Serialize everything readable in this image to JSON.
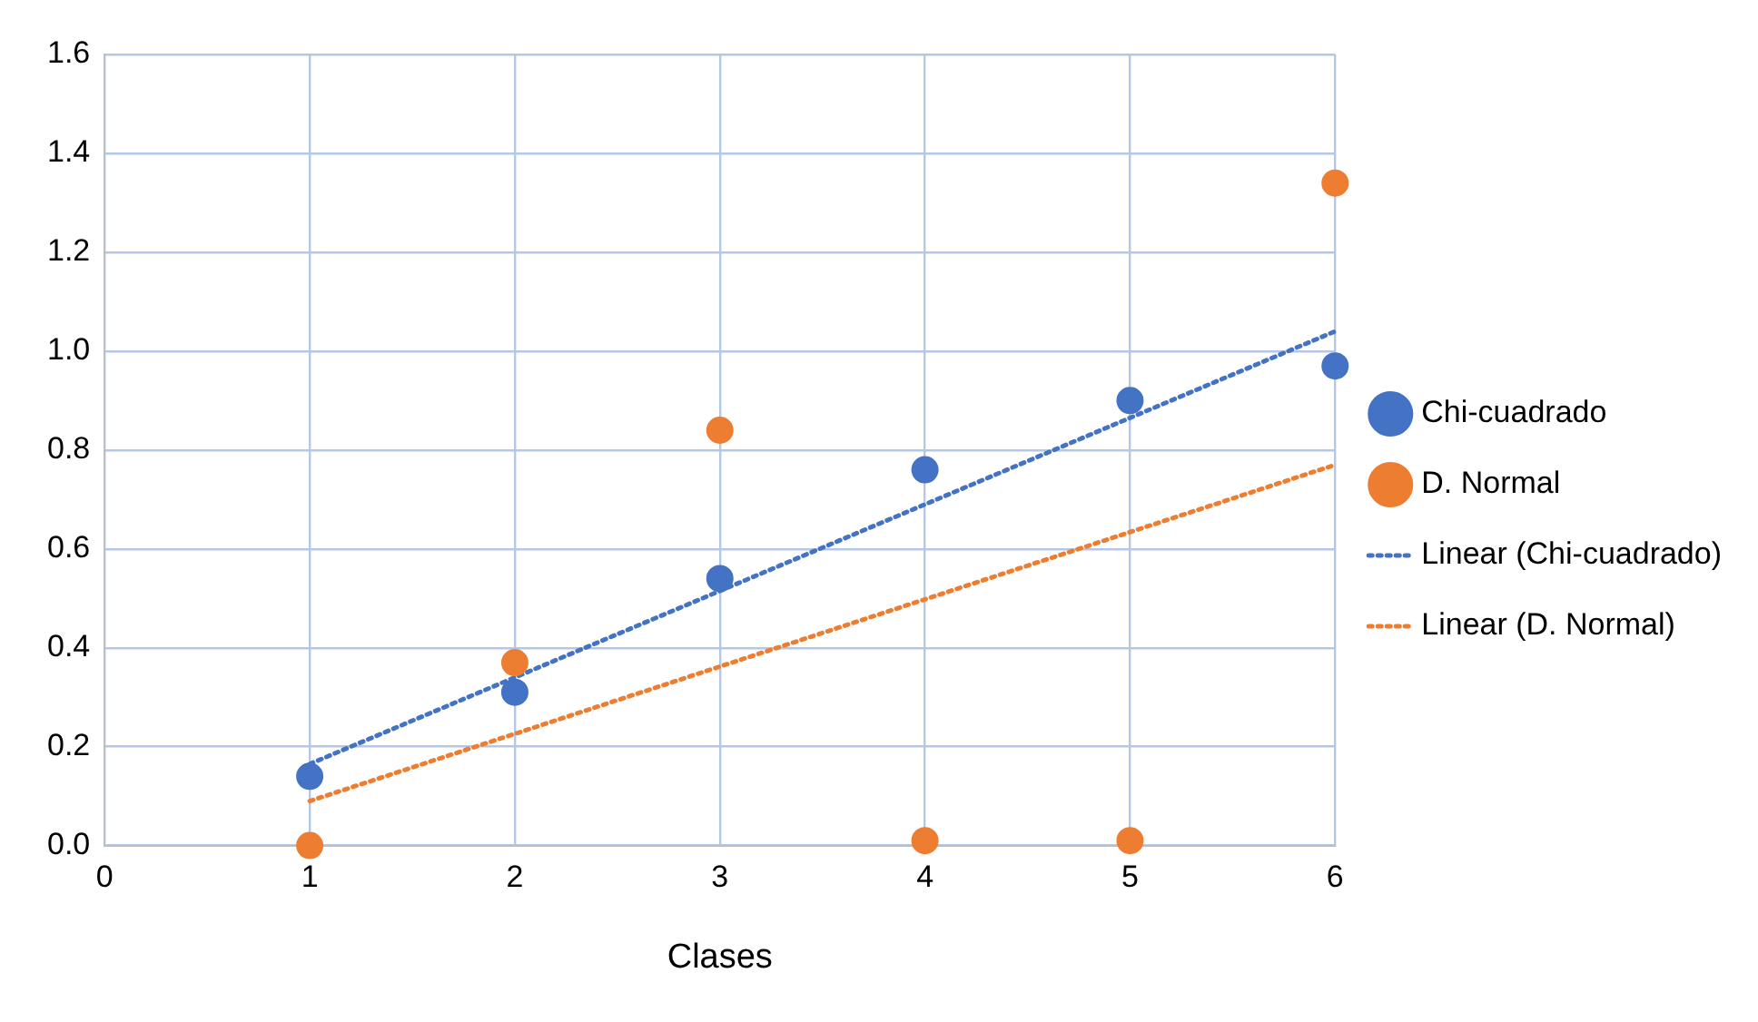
{
  "chart_data": {
    "type": "scatter",
    "xlabel": "Clases",
    "xlim": [
      0,
      6
    ],
    "xticks": [
      0,
      1,
      2,
      3,
      4,
      5,
      6
    ],
    "ylim": [
      0,
      1.6
    ],
    "yticks": [
      {
        "value": 0,
        "label": "0.0"
      },
      {
        "value": 0.2,
        "label": "0.2"
      },
      {
        "value": 0.4,
        "label": "0.4"
      },
      {
        "value": 0.6,
        "label": "0.6"
      },
      {
        "value": 0.8,
        "label": "0.8"
      },
      {
        "value": 1,
        "label": "1.0"
      },
      {
        "value": 1.2,
        "label": "1.2"
      },
      {
        "value": 1.4,
        "label": "1.4"
      },
      {
        "value": 1.6,
        "label": "1.6"
      }
    ],
    "grid": true,
    "legend": "right",
    "marker": "circle",
    "series": [
      {
        "name": "Chi-cuadrado",
        "type": "scatter",
        "color": "#4472c4",
        "x": [
          1,
          2,
          3,
          4,
          5,
          6
        ],
        "values": [
          0.14,
          0.31,
          0.54,
          0.76,
          0.9,
          0.97
        ]
      },
      {
        "name": "D. Normal",
        "type": "scatter",
        "color": "#ed7d31",
        "x": [
          1,
          2,
          3,
          4,
          5,
          6
        ],
        "values": [
          0.0,
          0.37,
          0.84,
          0.01,
          0.01,
          1.34
        ]
      },
      {
        "name": "Linear (Chi-cuadrado)",
        "type": "line",
        "color": "#4472c4",
        "line_style": "dotted",
        "marker": "none",
        "x": [
          1,
          6
        ],
        "values": [
          0.165,
          1.04
        ]
      },
      {
        "name": "Linear (D. Normal)",
        "type": "line",
        "color": "#ed7d31",
        "line_style": "dotted",
        "marker": "none",
        "x": [
          1,
          6
        ],
        "values": [
          0.09,
          0.77
        ]
      }
    ]
  }
}
